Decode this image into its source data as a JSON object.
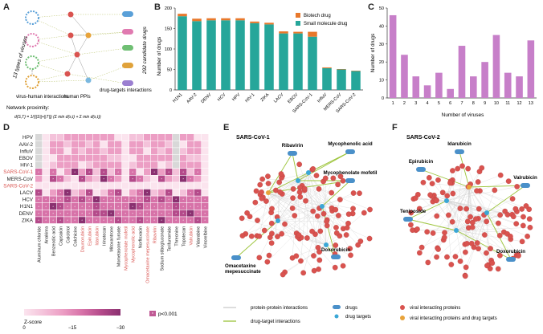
{
  "panels": {
    "A": {
      "letter": "A",
      "left_label": "13 types of viruses",
      "right_label": "292 candidate drugs",
      "bottom_labels": [
        "virus-human interactions",
        "human PPIs",
        "drug-targets interactions"
      ],
      "proximity_title": "Network proximity:",
      "formula": "d(S,T) = 1/(||S||+||T||) (Σ min d(s,t) + Σ min d(s,t))"
    },
    "B": {
      "letter": "B"
    },
    "C": {
      "letter": "C"
    },
    "D": {
      "letter": "D"
    },
    "E": {
      "letter": "E",
      "title": "SARS-CoV-1",
      "drugs": [
        "Ribavirin",
        "Mycophenolic acid",
        "Mycophenolate mofetil",
        "Doxorubicin",
        "Omacetaxine mepesuccinate"
      ]
    },
    "F": {
      "letter": "F",
      "title": "SARS-CoV-2",
      "drugs": [
        "Idarubicin",
        "Epirubicin",
        "Valrubicin",
        "Teniposide",
        "Doxorubicin"
      ]
    }
  },
  "legend": {
    "ppi": "protein-protein interactions",
    "dti": "drug-target interactions",
    "drugs": "drugs",
    "targets": "drug targets",
    "viral": "viral interacting proteins",
    "both": "viral interacting proteins and drug targets"
  },
  "heatmap_legend": {
    "title": "Z-score",
    "ticks": [
      "0",
      "−15",
      "−30"
    ],
    "sig": "p<0.001"
  },
  "chart_data": [
    {
      "type": "bar",
      "panel": "B",
      "categories": [
        "H1N1",
        "AAV-2",
        "DENV",
        "HCV",
        "HPV",
        "HIV-1",
        "ZIKA",
        "LACV",
        "EBOV",
        "SARS-CoV-1",
        "InfluV",
        "MERS-CoV",
        "SARS-CoV-2"
      ],
      "series": [
        {
          "name": "Small molecule drug",
          "values": [
            180,
            168,
            170,
            170,
            170,
            163,
            160,
            138,
            138,
            130,
            53,
            50,
            46
          ]
        },
        {
          "name": "Biotech drug",
          "values": [
            6,
            6,
            5,
            5,
            5,
            4,
            4,
            5,
            4,
            12,
            2,
            1,
            1
          ]
        }
      ],
      "ylabel": "Number of drugs",
      "ylim": [
        0,
        200
      ],
      "yticks": [
        "0",
        "50",
        "100",
        "150",
        "200"
      ],
      "colors": {
        "Small molecule drug": "#26A69A",
        "Biotech drug": "#E8782B"
      },
      "legend_position": "top-right"
    },
    {
      "type": "bar",
      "panel": "C",
      "categories": [
        "1",
        "2",
        "3",
        "4",
        "5",
        "6",
        "7",
        "8",
        "9",
        "10",
        "11",
        "12",
        "13"
      ],
      "values": [
        46,
        24,
        12,
        7,
        14,
        5,
        29,
        12,
        20,
        35,
        14,
        12,
        32
      ],
      "xlabel": "Number of viruses",
      "ylabel": "Number of drugs",
      "ylim": [
        0,
        50
      ],
      "yticks": [
        "0",
        "10",
        "20",
        "30",
        "40",
        "50"
      ],
      "color": "#C77FC9"
    },
    {
      "type": "heatmap",
      "panel": "D",
      "rows": [
        "HPV",
        "AAV-2",
        "InfluV",
        "EBOV",
        "HIV-1",
        "SARS-CoV-1",
        "MERS-CoV",
        "SARS-CoV-2",
        "LACV",
        "HCV",
        "H1N1",
        "DENV",
        "ZIKA"
      ],
      "row_colors": {
        "SARS-CoV-1": "#D9534F",
        "SARS-CoV-2": "#D9534F"
      },
      "columns": [
        "Aluminum chloride",
        "Anakinra",
        "Benzeodic acid",
        "Capsaicin",
        "Calcitriol",
        "Colchicine",
        "Daunorubicin",
        "Epirubicin",
        "Idarubicin",
        "Irinotecan",
        "Mitoxantrone",
        "Mometasone furoate",
        "Mycophenolate mofetil",
        "Mycophenolic acid",
        "Norfloxacin",
        "Omacetaxine mepesuccinate",
        "Ribavirin",
        "Sodium stibogluconate",
        "Terifunomide",
        "Threonine",
        "Topotecan",
        "Valrubicin",
        "Vidarabine",
        "Vinorelbine"
      ],
      "column_colors": {
        "Daunorubicin": "#D9534F",
        "Epirubicin": "#D9534F",
        "Idarubicin": "#D9534F",
        "Mycophenolate mofetil": "#D9534F",
        "Mycophenolic acid": "#D9534F",
        "Omacetaxine mepesuccinate": "#D9534F",
        "Ribavirin": "#D9534F",
        "Valrubicin": "#D9534F"
      },
      "zlim": [
        0,
        -30
      ]
    }
  ]
}
